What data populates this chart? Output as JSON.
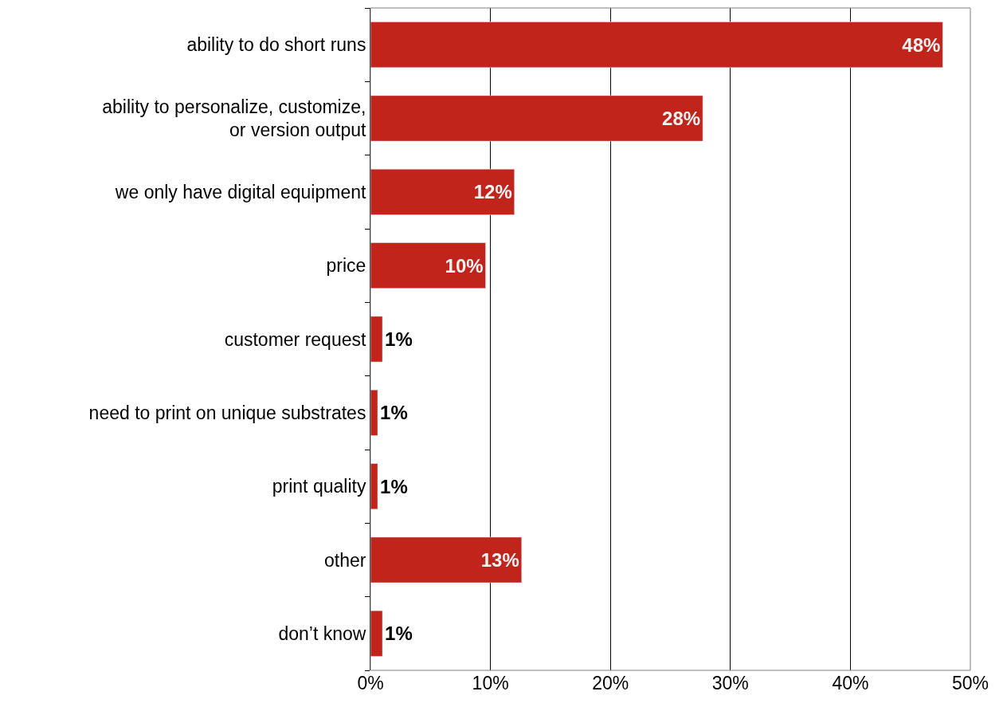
{
  "chart_data": {
    "type": "bar",
    "orientation": "horizontal",
    "categories": [
      "ability to do short runs",
      "ability to personalize, customize,\nor version output",
      "we only have digital equipment",
      "price",
      "customer request",
      "need to print on unique substrates",
      "print quality",
      "other",
      "don’t know"
    ],
    "values": [
      47.7,
      27.7,
      12.0,
      9.6,
      1.0,
      0.6,
      0.6,
      12.6,
      1.0
    ],
    "value_labels": [
      "48%",
      "28%",
      "12%",
      "10%",
      "1%",
      "1%",
      "1%",
      "13%",
      "1%"
    ],
    "color": "#c0241a",
    "xlim": [
      0,
      50
    ],
    "xticks": [
      {
        "value": 0,
        "label": "0%"
      },
      {
        "value": 10,
        "label": "10%"
      },
      {
        "value": 20,
        "label": "20%"
      },
      {
        "value": 30,
        "label": "30%"
      },
      {
        "value": 40,
        "label": "40%"
      },
      {
        "value": 50,
        "label": "50%"
      }
    ],
    "grid": "x"
  }
}
